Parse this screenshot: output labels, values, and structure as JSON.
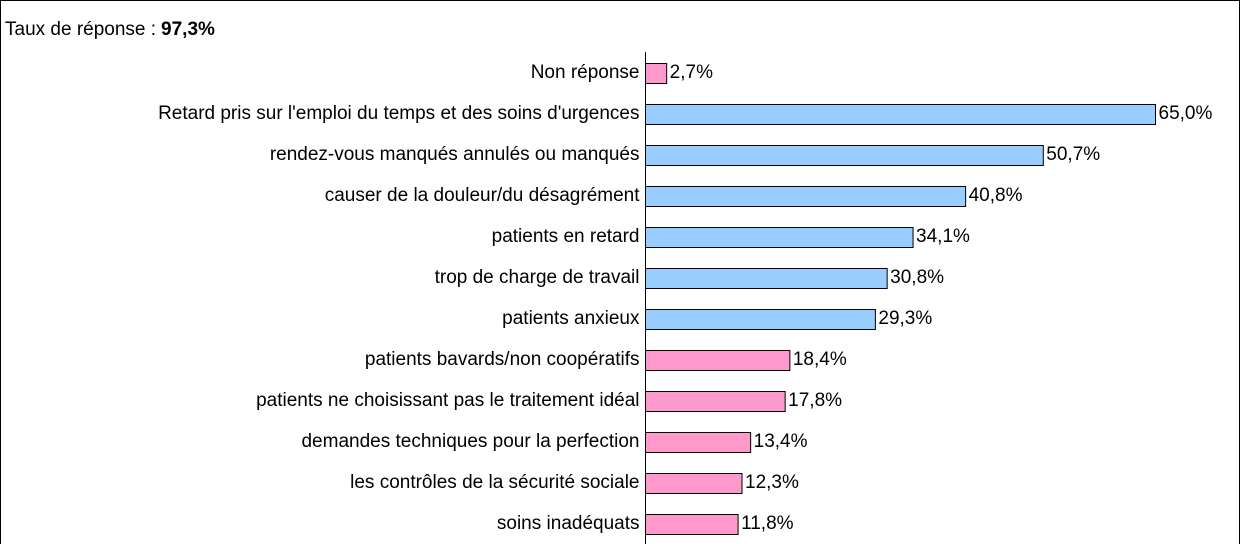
{
  "chart_data": {
    "type": "hbar",
    "title": "Taux de réponse :",
    "title_value": "97,3%",
    "categories": [
      "Non réponse",
      "Retard pris sur l'emploi du temps et des soins d'urgences",
      "rendez-vous manqués annulés ou manqués",
      "causer de la douleur/du désagrément",
      "patients en retard",
      "trop de charge de travail",
      "patients anxieux",
      "patients bavards/non coopératifs",
      "patients ne choisissant pas le traitement idéal",
      "demandes techniques pour la perfection",
      "les contrôles de la sécurité sociale",
      "soins inadéquats"
    ],
    "values": [
      2.7,
      65.0,
      50.7,
      40.8,
      34.1,
      30.8,
      29.3,
      18.4,
      17.8,
      13.4,
      12.3,
      11.8
    ],
    "value_labels": [
      "2,7%",
      "65,0%",
      "50,7%",
      "40,8%",
      "34,1%",
      "30,8%",
      "29,3%",
      "18,4%",
      "17,8%",
      "13,4%",
      "12,3%",
      "11,8%"
    ],
    "colors": [
      "#ff99cc",
      "#99ccff",
      "#99ccff",
      "#99ccff",
      "#99ccff",
      "#99ccff",
      "#99ccff",
      "#ff99cc",
      "#ff99cc",
      "#ff99cc",
      "#ff99cc",
      "#ff99cc"
    ],
    "xlim": [
      0,
      65
    ]
  }
}
